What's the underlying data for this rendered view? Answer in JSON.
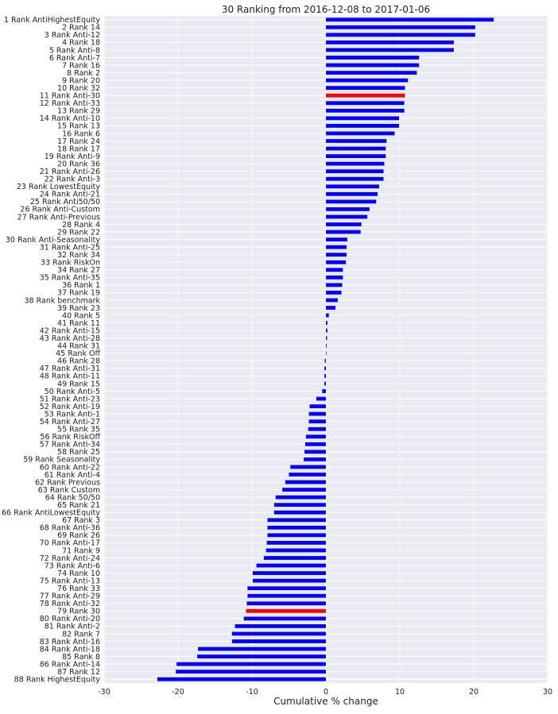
{
  "chart_data": {
    "type": "bar",
    "orientation": "horizontal",
    "title": "30 Ranking from 2016-12-08 to 2017-01-06",
    "xlabel": "Cumulative % change",
    "ylabel": "",
    "xlim": [
      -30,
      30
    ],
    "xticks": [
      -30,
      -20,
      -10,
      0,
      10,
      20,
      30
    ],
    "grid": true,
    "colors": {
      "default": "#0000ff",
      "highlight": "#ff0000",
      "background": "#eaeaf2",
      "grid": "#ffffff"
    },
    "highlighted": [
      "11 Rank Anti-30",
      "79 Rank 30"
    ],
    "categories": [
      "1 Rank AntiHighestEquity",
      "2 Rank 14",
      "3 Rank Anti-12",
      "4 Rank 18",
      "5 Rank Anti-8",
      "6 Rank Anti-7",
      "7 Rank 16",
      "8 Rank 2",
      "9 Rank 20",
      "10 Rank 32",
      "11 Rank Anti-30",
      "12 Rank Anti-33",
      "13 Rank 29",
      "14 Rank Anti-10",
      "15 Rank 13",
      "16 Rank 6",
      "17 Rank 24",
      "18 Rank 17",
      "19 Rank Anti-9",
      "20 Rank 36",
      "21 Rank Anti-26",
      "22 Rank Anti-3",
      "23 Rank LowestEquity",
      "24 Rank Anti-21",
      "25 Rank Anti50/50",
      "26 Rank Anti-Custom",
      "27 Rank Anti-Previous",
      "28 Rank 4",
      "29 Rank 22",
      "30 Rank Anti-Seasonality",
      "31 Rank Anti-25",
      "32 Rank 34",
      "33 Rank RiskOn",
      "34 Rank 27",
      "35 Rank Anti-35",
      "36 Rank 1",
      "37 Rank 19",
      "38 Rank benchmark",
      "39 Rank 23",
      "40 Rank 5",
      "41 Rank 11",
      "42 Rank Anti-15",
      "43 Rank Anti-28",
      "44 Rank 31",
      "45 Rank Off",
      "46 Rank 28",
      "47 Rank Anti-31",
      "48 Rank Anti-11",
      "49 Rank 15",
      "50 Rank Anti-5",
      "51 Rank Anti-23",
      "52 Rank Anti-19",
      "53 Rank Anti-1",
      "54 Rank Anti-27",
      "55 Rank 35",
      "56 Rank RiskOff",
      "57 Rank Anti-34",
      "58 Rank 25",
      "59 Rank Seasonality",
      "60 Rank Anti-22",
      "61 Rank Anti-4",
      "62 Rank Previous",
      "63 Rank Custom",
      "64 Rank 50/50",
      "65 Rank 21",
      "66 Rank AntiLowestEquity",
      "67 Rank 3",
      "68 Rank Anti-36",
      "69 Rank 26",
      "70 Rank Anti-17",
      "71 Rank 9",
      "72 Rank Anti-24",
      "73 Rank Anti-6",
      "74 Rank 10",
      "75 Rank Anti-13",
      "76 Rank 33",
      "77 Rank Anti-29",
      "78 Rank Anti-32",
      "79 Rank 30",
      "80 Rank Anti-20",
      "81 Rank Anti-2",
      "82 Rank 7",
      "83 Rank Anti-16",
      "84 Rank Anti-18",
      "85 Rank 8",
      "86 Rank Anti-14",
      "87 Rank 12",
      "88 Rank HighestEquity"
    ],
    "values": [
      22.7,
      20.2,
      20.2,
      17.3,
      17.3,
      12.6,
      12.6,
      12.3,
      11.1,
      10.7,
      10.7,
      10.6,
      10.6,
      9.9,
      9.9,
      9.3,
      8.2,
      8.1,
      8.1,
      7.9,
      7.8,
      7.8,
      7.2,
      7.0,
      6.8,
      5.9,
      5.6,
      4.8,
      4.7,
      2.9,
      2.8,
      2.8,
      2.7,
      2.3,
      2.3,
      2.2,
      2.1,
      1.6,
      1.3,
      0.4,
      0.2,
      0.2,
      0.15,
      0.1,
      0.0,
      -0.15,
      -0.2,
      -0.2,
      -0.2,
      -0.5,
      -1.3,
      -2.2,
      -2.3,
      -2.3,
      -2.4,
      -2.7,
      -2.8,
      -2.9,
      -3.0,
      -4.8,
      -5.0,
      -5.5,
      -5.9,
      -6.8,
      -7.0,
      -7.0,
      -7.9,
      -7.9,
      -7.9,
      -8.0,
      -8.1,
      -8.4,
      -9.4,
      -9.9,
      -9.9,
      -10.6,
      -10.6,
      -10.7,
      -10.8,
      -11.1,
      -12.3,
      -12.7,
      -12.7,
      -17.3,
      -17.4,
      -20.2,
      -20.3,
      -22.8
    ]
  }
}
